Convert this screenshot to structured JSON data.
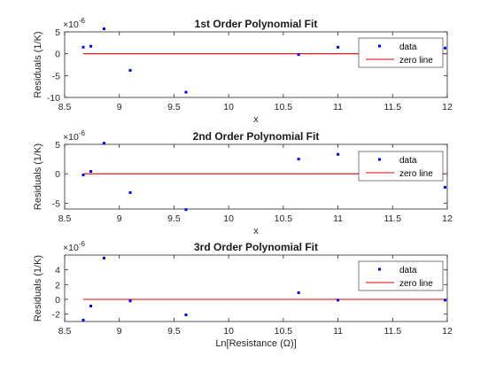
{
  "colors": {
    "data": "#0000ff",
    "zero_line": "#e00000",
    "axis": "#262626",
    "background": "#ffffff"
  },
  "chart_data": [
    {
      "type": "scatter",
      "title": "1st Order Polynomial Fit",
      "xlabel": "x",
      "ylabel": "Residuals (1/K)",
      "y_exponent_base": "×10",
      "y_exponent_power": "-6",
      "xlim": [
        8.5,
        12
      ],
      "ylim": [
        -10,
        5
      ],
      "xticks": [
        "8.5",
        "9",
        "9.5",
        "10",
        "10.5",
        "11",
        "11.5",
        "12"
      ],
      "yticks": [
        "-10",
        "-5",
        "0",
        "5"
      ],
      "ytick_values": [
        -10,
        -5,
        0,
        5
      ],
      "legend_position": "top-right",
      "series": [
        {
          "name": "data",
          "x": [
            8.67,
            8.74,
            8.86,
            9.1,
            9.61,
            10.64,
            11.0,
            11.98
          ],
          "y": [
            1.5,
            1.7,
            5.7,
            -3.8,
            -8.8,
            -0.2,
            1.5,
            1.3
          ]
        },
        {
          "name": "zero line",
          "x": [
            8.67,
            11.98
          ],
          "y": [
            0,
            0
          ]
        }
      ]
    },
    {
      "type": "scatter",
      "title": "2nd Order Polynomial Fit",
      "xlabel": "x",
      "ylabel": "Residuals (1/K)",
      "y_exponent_base": "×10",
      "y_exponent_power": "-6",
      "xlim": [
        8.5,
        12
      ],
      "ylim": [
        -6,
        5
      ],
      "xticks": [
        "8.5",
        "9",
        "9.5",
        "10",
        "10.5",
        "11",
        "11.5",
        "12"
      ],
      "yticks": [
        "-5",
        "0",
        "5"
      ],
      "ytick_values": [
        -5,
        0,
        5
      ],
      "legend_position": "top-right",
      "series": [
        {
          "name": "data",
          "x": [
            8.67,
            8.74,
            8.86,
            9.1,
            9.61,
            10.64,
            11.0,
            11.98
          ],
          "y": [
            -0.2,
            0.4,
            5.2,
            -3.2,
            -6.1,
            2.5,
            3.3,
            -2.3
          ]
        },
        {
          "name": "zero line",
          "x": [
            8.67,
            11.98
          ],
          "y": [
            0,
            0
          ]
        }
      ]
    },
    {
      "type": "scatter",
      "title": "3rd Order Polynomial Fit",
      "xlabel": "Ln[Resistance (Ω)]",
      "ylabel": "Residuals (1/K)",
      "y_exponent_base": "×10",
      "y_exponent_power": "-6",
      "xlim": [
        8.5,
        12
      ],
      "ylim": [
        -3,
        6
      ],
      "xticks": [
        "8.5",
        "9",
        "9.5",
        "10",
        "10.5",
        "11",
        "11.5",
        "12"
      ],
      "yticks": [
        "-2",
        "0",
        "2",
        "4"
      ],
      "ytick_values": [
        -2,
        0,
        2,
        4
      ],
      "legend_position": "top-right",
      "series": [
        {
          "name": "data",
          "x": [
            8.67,
            8.74,
            8.86,
            9.1,
            9.61,
            10.64,
            11.0,
            11.98
          ],
          "y": [
            -2.8,
            -0.9,
            5.6,
            -0.2,
            -2.1,
            0.9,
            -0.1,
            -0.1
          ]
        },
        {
          "name": "zero line",
          "x": [
            8.67,
            11.98
          ],
          "y": [
            0,
            0
          ]
        }
      ]
    }
  ]
}
